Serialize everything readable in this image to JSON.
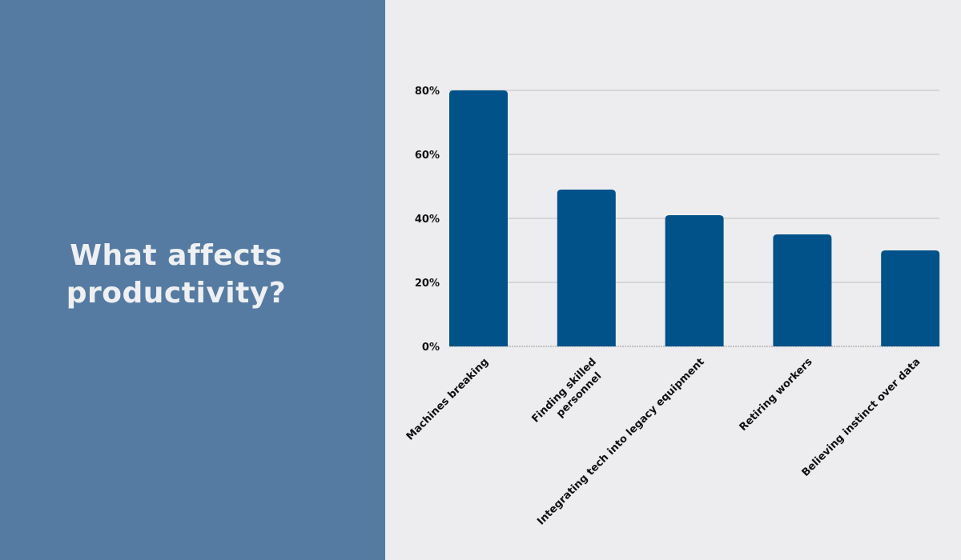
{
  "title_lines": [
    "What affects",
    "productivity?"
  ],
  "colors": {
    "left_panel": "#567ba2",
    "background": "#ededef",
    "bar": "#005288",
    "grid": "#c8c8cc",
    "title": "#eef0f3"
  },
  "chart_data": {
    "type": "bar",
    "title": "What affects productivity?",
    "categories": [
      [
        "Machines breaking"
      ],
      [
        "Finding skilled",
        "personnel"
      ],
      [
        "Integrating tech into legacy equipment"
      ],
      [
        "Retiring workers"
      ],
      [
        "Believing instinct over data"
      ]
    ],
    "values": [
      80,
      49,
      41,
      35,
      30
    ],
    "ylim": [
      0,
      80
    ],
    "yticks": [
      0,
      20,
      40,
      60,
      80
    ],
    "ytick_labels": [
      "0%",
      "20%",
      "40%",
      "60%",
      "80%"
    ],
    "xlabel": "",
    "ylabel": "",
    "grid": true,
    "legend": "none"
  }
}
